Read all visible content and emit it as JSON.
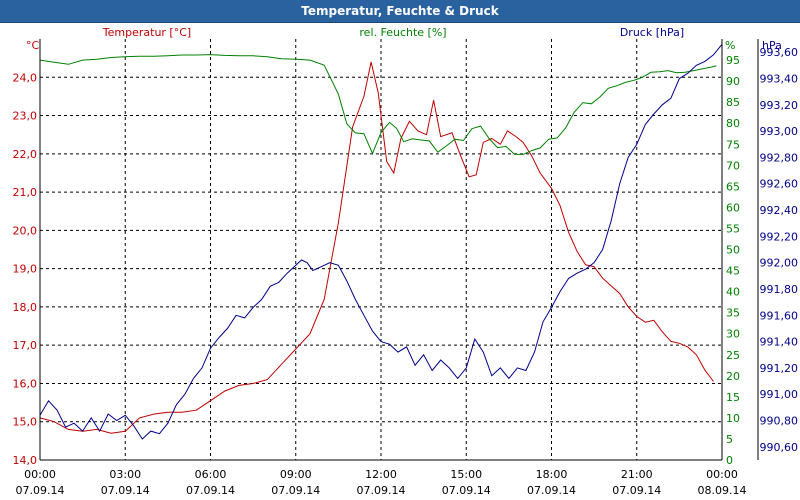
{
  "window": {
    "title": "Temperatur, Feuchte & Druck"
  },
  "colors": {
    "temperature": "#c00000",
    "humidity": "#008000",
    "pressure": "#00008b",
    "grid": "#000000",
    "title_bar": "#2a62a0"
  },
  "chart_data": {
    "type": "line",
    "grid": true,
    "x_ticks": [
      {
        "time": "00:00",
        "date": "07.09.14"
      },
      {
        "time": "03:00",
        "date": "07.09.14"
      },
      {
        "time": "06:00",
        "date": "07.09.14"
      },
      {
        "time": "09:00",
        "date": "07.09.14"
      },
      {
        "time": "12:00",
        "date": "07.09.14"
      },
      {
        "time": "15:00",
        "date": "07.09.14"
      },
      {
        "time": "18:00",
        "date": "07.09.14"
      },
      {
        "time": "21:00",
        "date": "07.09.14"
      },
      {
        "time": "00:00",
        "date": "08.09.14"
      }
    ],
    "axes": {
      "temperature": {
        "label": "Temperatur [°C]",
        "unit": "°C",
        "range": [
          14.0,
          25.0
        ],
        "ticks": [
          "14,0",
          "15,0",
          "16,0",
          "17,0",
          "18,0",
          "19,0",
          "20,0",
          "21,0",
          "22,0",
          "23,0",
          "24,0"
        ]
      },
      "humidity": {
        "label": "rel. Feuchte [%]",
        "unit": "%",
        "range": [
          0,
          100
        ],
        "ticks": [
          "0",
          "5",
          "10",
          "15",
          "20",
          "25",
          "30",
          "35",
          "40",
          "45",
          "50",
          "55",
          "60",
          "65",
          "70",
          "75",
          "80",
          "85",
          "90",
          "95"
        ]
      },
      "pressure": {
        "label": "Druck [hPa]",
        "unit": "hPa",
        "range": [
          990.5,
          993.7
        ],
        "ticks": [
          "990,60",
          "990,80",
          "991,00",
          "991,20",
          "991,40",
          "991,60",
          "991,80",
          "992,00",
          "992,20",
          "992,40",
          "992,60",
          "992,80",
          "993,00",
          "993,20",
          "993,40",
          "993,60"
        ]
      }
    },
    "series": [
      {
        "name": "Temperatur [°C]",
        "axis": "temperature",
        "points": [
          [
            0,
            15.1
          ],
          [
            0.5,
            15.0
          ],
          [
            1,
            14.8
          ],
          [
            1.5,
            14.75
          ],
          [
            2,
            14.8
          ],
          [
            2.5,
            14.7
          ],
          [
            3,
            14.75
          ],
          [
            3.5,
            15.1
          ],
          [
            4,
            15.2
          ],
          [
            4.5,
            15.25
          ],
          [
            5,
            15.25
          ],
          [
            5.5,
            15.3
          ],
          [
            6,
            15.55
          ],
          [
            6.5,
            15.8
          ],
          [
            7,
            15.95
          ],
          [
            7.5,
            16.0
          ],
          [
            8,
            16.1
          ],
          [
            8.5,
            16.5
          ],
          [
            9,
            16.9
          ],
          [
            9.5,
            17.3
          ],
          [
            10,
            18.2
          ],
          [
            10.5,
            20.2
          ],
          [
            11,
            22.7
          ],
          [
            11.4,
            23.5
          ],
          [
            11.65,
            24.4
          ],
          [
            11.9,
            23.6
          ],
          [
            12.2,
            21.8
          ],
          [
            12.45,
            21.5
          ],
          [
            12.7,
            22.4
          ],
          [
            13,
            22.85
          ],
          [
            13.3,
            22.6
          ],
          [
            13.6,
            22.5
          ],
          [
            13.85,
            23.4
          ],
          [
            14.1,
            22.45
          ],
          [
            14.5,
            22.55
          ],
          [
            14.8,
            21.95
          ],
          [
            15.1,
            21.4
          ],
          [
            15.35,
            21.45
          ],
          [
            15.6,
            22.3
          ],
          [
            15.9,
            22.4
          ],
          [
            16.2,
            22.25
          ],
          [
            16.45,
            22.6
          ],
          [
            16.75,
            22.45
          ],
          [
            17,
            22.3
          ],
          [
            17.3,
            21.95
          ],
          [
            17.6,
            21.5
          ],
          [
            18,
            21.1
          ],
          [
            18.3,
            20.65
          ],
          [
            18.6,
            19.95
          ],
          [
            18.9,
            19.45
          ],
          [
            19.2,
            19.1
          ],
          [
            19.5,
            19.05
          ],
          [
            19.8,
            18.75
          ],
          [
            20.1,
            18.55
          ],
          [
            20.4,
            18.35
          ],
          [
            20.7,
            18.0
          ],
          [
            21,
            17.75
          ],
          [
            21.3,
            17.6
          ],
          [
            21.6,
            17.65
          ],
          [
            21.9,
            17.35
          ],
          [
            22.2,
            17.1
          ],
          [
            22.5,
            17.05
          ],
          [
            22.8,
            16.95
          ],
          [
            23.1,
            16.75
          ],
          [
            23.4,
            16.35
          ],
          [
            23.7,
            16.05
          ]
        ]
      },
      {
        "name": "rel. Feuchte [%]",
        "axis": "humidity",
        "points": [
          [
            0,
            95
          ],
          [
            0.5,
            94.5
          ],
          [
            1,
            94
          ],
          [
            1.5,
            95
          ],
          [
            2,
            95.2
          ],
          [
            2.5,
            95.6
          ],
          [
            3,
            95.8
          ],
          [
            3.5,
            95.9
          ],
          [
            4,
            95.9
          ],
          [
            4.5,
            96
          ],
          [
            5,
            96.2
          ],
          [
            5.5,
            96.2
          ],
          [
            6,
            96.3
          ],
          [
            6.5,
            96.1
          ],
          [
            7,
            96
          ],
          [
            7.5,
            96
          ],
          [
            8,
            95.8
          ],
          [
            8.5,
            95.3
          ],
          [
            9,
            95.2
          ],
          [
            9.5,
            95
          ],
          [
            10,
            93.8
          ],
          [
            10.5,
            86.9
          ],
          [
            10.8,
            79.8
          ],
          [
            11.1,
            77.7
          ],
          [
            11.4,
            77.5
          ],
          [
            11.7,
            72.8
          ],
          [
            12,
            77.8
          ],
          [
            12.3,
            80.2
          ],
          [
            12.55,
            78.8
          ],
          [
            12.8,
            75.6
          ],
          [
            13.1,
            76.3
          ],
          [
            13.4,
            76
          ],
          [
            13.7,
            75.8
          ],
          [
            14,
            73.1
          ],
          [
            14.3,
            74.6
          ],
          [
            14.6,
            76.2
          ],
          [
            14.9,
            75.9
          ],
          [
            15.2,
            78.7
          ],
          [
            15.5,
            79.3
          ],
          [
            15.8,
            76.4
          ],
          [
            16.1,
            74.2
          ],
          [
            16.4,
            74.5
          ],
          [
            16.7,
            72.6
          ],
          [
            17,
            72.6
          ],
          [
            17.3,
            73.5
          ],
          [
            17.6,
            74.1
          ],
          [
            17.9,
            76.2
          ],
          [
            18.2,
            76.5
          ],
          [
            18.5,
            78.9
          ],
          [
            18.8,
            82.6
          ],
          [
            19.1,
            84.9
          ],
          [
            19.4,
            84.6
          ],
          [
            19.7,
            86.2
          ],
          [
            20,
            88.3
          ],
          [
            20.3,
            88.9
          ],
          [
            20.6,
            89.7
          ],
          [
            20.9,
            90.2
          ],
          [
            21.2,
            90.9
          ],
          [
            21.5,
            92.1
          ],
          [
            21.8,
            92.2
          ],
          [
            22.1,
            92.5
          ],
          [
            22.4,
            92.0
          ],
          [
            22.7,
            92.1
          ],
          [
            23,
            92.5
          ],
          [
            23.3,
            92.9
          ],
          [
            23.6,
            93.3
          ],
          [
            23.8,
            93.6
          ]
        ]
      },
      {
        "name": "Druck [hPa]",
        "axis": "pressure",
        "points": [
          [
            0,
            990.84
          ],
          [
            0.3,
            990.95
          ],
          [
            0.6,
            990.88
          ],
          [
            0.9,
            990.75
          ],
          [
            1.2,
            990.78
          ],
          [
            1.5,
            990.72
          ],
          [
            1.8,
            990.82
          ],
          [
            2.1,
            990.72
          ],
          [
            2.4,
            990.85
          ],
          [
            2.7,
            990.8
          ],
          [
            3,
            990.84
          ],
          [
            3.3,
            990.76
          ],
          [
            3.6,
            990.66
          ],
          [
            3.9,
            990.72
          ],
          [
            4.2,
            990.7
          ],
          [
            4.5,
            990.78
          ],
          [
            4.8,
            990.92
          ],
          [
            5.1,
            991.0
          ],
          [
            5.4,
            991.12
          ],
          [
            5.7,
            991.2
          ],
          [
            6,
            991.35
          ],
          [
            6.3,
            991.43
          ],
          [
            6.6,
            991.5
          ],
          [
            6.9,
            991.6
          ],
          [
            7.2,
            991.58
          ],
          [
            7.5,
            991.66
          ],
          [
            7.8,
            991.72
          ],
          [
            8.1,
            991.82
          ],
          [
            8.4,
            991.85
          ],
          [
            8.7,
            991.92
          ],
          [
            9.0,
            991.98
          ],
          [
            9.2,
            992.02
          ],
          [
            9.4,
            992.0
          ],
          [
            9.6,
            991.94
          ],
          [
            9.8,
            991.96
          ],
          [
            10,
            991.98
          ],
          [
            10.2,
            992.0
          ],
          [
            10.5,
            991.98
          ],
          [
            10.8,
            991.86
          ],
          [
            11.1,
            991.72
          ],
          [
            11.4,
            991.6
          ],
          [
            11.7,
            991.48
          ],
          [
            12,
            991.4
          ],
          [
            12.3,
            991.38
          ],
          [
            12.6,
            991.32
          ],
          [
            12.9,
            991.36
          ],
          [
            13.2,
            991.22
          ],
          [
            13.5,
            991.3
          ],
          [
            13.8,
            991.18
          ],
          [
            14.1,
            991.26
          ],
          [
            14.4,
            991.2
          ],
          [
            14.7,
            991.12
          ],
          [
            15.0,
            991.2
          ],
          [
            15.3,
            991.42
          ],
          [
            15.6,
            991.32
          ],
          [
            15.9,
            991.14
          ],
          [
            16.2,
            991.2
          ],
          [
            16.5,
            991.12
          ],
          [
            16.8,
            991.2
          ],
          [
            17.1,
            991.18
          ],
          [
            17.4,
            991.32
          ],
          [
            17.7,
            991.55
          ],
          [
            18.0,
            991.66
          ],
          [
            18.3,
            991.78
          ],
          [
            18.6,
            991.88
          ],
          [
            18.9,
            991.92
          ],
          [
            19.2,
            991.95
          ],
          [
            19.5,
            992.0
          ],
          [
            19.8,
            992.1
          ],
          [
            20.1,
            992.32
          ],
          [
            20.4,
            992.6
          ],
          [
            20.7,
            992.8
          ],
          [
            21.0,
            992.9
          ],
          [
            21.3,
            993.05
          ],
          [
            21.6,
            993.13
          ],
          [
            21.9,
            993.2
          ],
          [
            22.2,
            993.25
          ],
          [
            22.5,
            993.4
          ],
          [
            22.8,
            993.44
          ],
          [
            23.1,
            993.5
          ],
          [
            23.4,
            993.53
          ],
          [
            23.7,
            993.58
          ],
          [
            24.0,
            993.66
          ]
        ]
      }
    ]
  }
}
